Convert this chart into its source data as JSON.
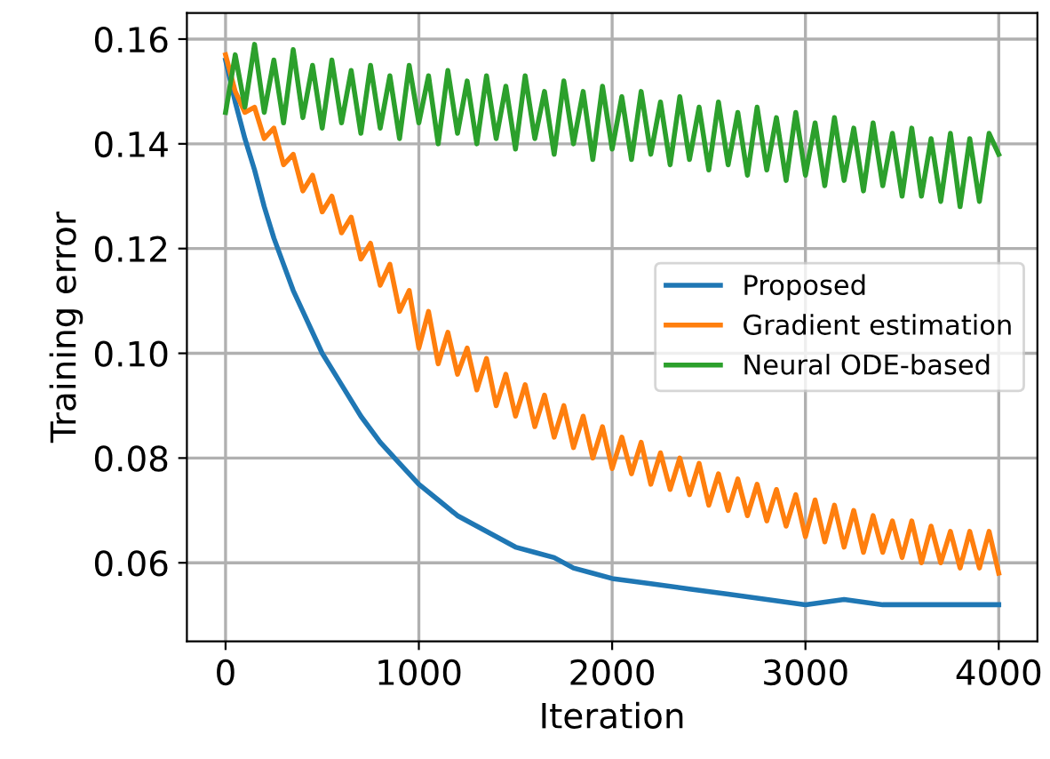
{
  "chart_data": {
    "type": "line",
    "xlabel": "Iteration",
    "ylabel": "Training error",
    "xlim": [
      -200,
      4200
    ],
    "ylim": [
      0.045,
      0.165
    ],
    "xticks": [
      0,
      1000,
      2000,
      3000,
      4000
    ],
    "yticks": [
      {
        "value": 0.06,
        "label": "0.06"
      },
      {
        "value": 0.08,
        "label": "0.08"
      },
      {
        "value": 0.1,
        "label": "0.10"
      },
      {
        "value": 0.12,
        "label": "0.12"
      },
      {
        "value": 0.14,
        "label": "0.14"
      },
      {
        "value": 0.16,
        "label": "0.16"
      }
    ],
    "grid": true,
    "legend": "center right",
    "marker": "none",
    "line_style": "solid",
    "series": [
      {
        "name": "Proposed",
        "color": "#1f77b4",
        "x": [
          0,
          50,
          100,
          150,
          200,
          250,
          300,
          350,
          400,
          450,
          500,
          600,
          700,
          800,
          900,
          1000,
          1100,
          1200,
          1300,
          1400,
          1500,
          1600,
          1700,
          1800,
          1900,
          2000,
          2200,
          2400,
          2600,
          2800,
          3000,
          3200,
          3400,
          3600,
          3800,
          4000
        ],
        "values": [
          0.156,
          0.148,
          0.141,
          0.135,
          0.128,
          0.122,
          0.117,
          0.112,
          0.108,
          0.104,
          0.1,
          0.094,
          0.088,
          0.083,
          0.079,
          0.075,
          0.072,
          0.069,
          0.067,
          0.065,
          0.063,
          0.062,
          0.061,
          0.059,
          0.058,
          0.057,
          0.056,
          0.055,
          0.054,
          0.053,
          0.052,
          0.053,
          0.052,
          0.052,
          0.052,
          0.052
        ]
      },
      {
        "name": "Gradient estimation",
        "color": "#ff7f0e",
        "x": [
          0,
          50,
          100,
          150,
          200,
          250,
          300,
          350,
          400,
          450,
          500,
          550,
          600,
          650,
          700,
          750,
          800,
          850,
          900,
          950,
          1000,
          1050,
          1100,
          1150,
          1200,
          1250,
          1300,
          1350,
          1400,
          1450,
          1500,
          1550,
          1600,
          1650,
          1700,
          1750,
          1800,
          1850,
          1900,
          1950,
          2000,
          2050,
          2100,
          2150,
          2200,
          2250,
          2300,
          2350,
          2400,
          2450,
          2500,
          2550,
          2600,
          2650,
          2700,
          2750,
          2800,
          2850,
          2900,
          2950,
          3000,
          3050,
          3100,
          3150,
          3200,
          3250,
          3300,
          3350,
          3400,
          3450,
          3500,
          3550,
          3600,
          3650,
          3700,
          3750,
          3800,
          3850,
          3900,
          3950,
          4000
        ],
        "values": [
          0.157,
          0.15,
          0.146,
          0.147,
          0.141,
          0.143,
          0.136,
          0.138,
          0.131,
          0.134,
          0.127,
          0.13,
          0.123,
          0.126,
          0.118,
          0.121,
          0.113,
          0.117,
          0.108,
          0.112,
          0.101,
          0.108,
          0.098,
          0.104,
          0.096,
          0.101,
          0.093,
          0.099,
          0.09,
          0.096,
          0.088,
          0.094,
          0.086,
          0.092,
          0.084,
          0.09,
          0.082,
          0.088,
          0.08,
          0.086,
          0.078,
          0.084,
          0.077,
          0.083,
          0.075,
          0.081,
          0.074,
          0.08,
          0.073,
          0.079,
          0.071,
          0.077,
          0.07,
          0.076,
          0.069,
          0.075,
          0.068,
          0.074,
          0.067,
          0.073,
          0.065,
          0.072,
          0.064,
          0.071,
          0.063,
          0.07,
          0.062,
          0.069,
          0.062,
          0.068,
          0.061,
          0.068,
          0.06,
          0.067,
          0.06,
          0.066,
          0.059,
          0.066,
          0.059,
          0.066,
          0.058
        ]
      },
      {
        "name": "Neural ODE-based",
        "color": "#2ca02c",
        "x": [
          0,
          50,
          100,
          150,
          200,
          250,
          300,
          350,
          400,
          450,
          500,
          550,
          600,
          650,
          700,
          750,
          800,
          850,
          900,
          950,
          1000,
          1050,
          1100,
          1150,
          1200,
          1250,
          1300,
          1350,
          1400,
          1450,
          1500,
          1550,
          1600,
          1650,
          1700,
          1750,
          1800,
          1850,
          1900,
          1950,
          2000,
          2050,
          2100,
          2150,
          2200,
          2250,
          2300,
          2350,
          2400,
          2450,
          2500,
          2550,
          2600,
          2650,
          2700,
          2750,
          2800,
          2850,
          2900,
          2950,
          3000,
          3050,
          3100,
          3150,
          3200,
          3250,
          3300,
          3350,
          3400,
          3450,
          3500,
          3550,
          3600,
          3650,
          3700,
          3750,
          3800,
          3850,
          3900,
          3950,
          4000
        ],
        "values": [
          0.146,
          0.157,
          0.147,
          0.159,
          0.146,
          0.156,
          0.144,
          0.158,
          0.145,
          0.155,
          0.143,
          0.156,
          0.144,
          0.154,
          0.142,
          0.155,
          0.143,
          0.153,
          0.141,
          0.155,
          0.144,
          0.153,
          0.14,
          0.154,
          0.142,
          0.152,
          0.14,
          0.153,
          0.141,
          0.151,
          0.139,
          0.153,
          0.141,
          0.15,
          0.138,
          0.152,
          0.14,
          0.15,
          0.137,
          0.151,
          0.139,
          0.149,
          0.137,
          0.15,
          0.138,
          0.148,
          0.136,
          0.149,
          0.137,
          0.147,
          0.135,
          0.148,
          0.136,
          0.146,
          0.134,
          0.147,
          0.135,
          0.145,
          0.133,
          0.146,
          0.134,
          0.144,
          0.132,
          0.145,
          0.133,
          0.143,
          0.131,
          0.144,
          0.132,
          0.142,
          0.13,
          0.143,
          0.13,
          0.141,
          0.129,
          0.142,
          0.128,
          0.141,
          0.129,
          0.142,
          0.138
        ]
      }
    ]
  }
}
